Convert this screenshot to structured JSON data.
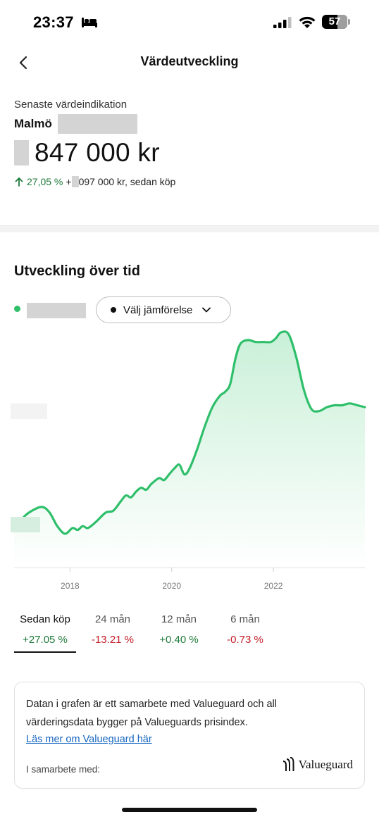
{
  "status_bar": {
    "time": "23:37",
    "battery": "57"
  },
  "nav": {
    "title": "Värdeutveckling"
  },
  "summary": {
    "label": "Senaste värdeindikation",
    "city": "Malmö",
    "value": "847 000 kr",
    "change_pct": "27,05 %",
    "change_amount_prefix": "+",
    "change_amount_suffix": "097 000 kr, sedan köp"
  },
  "development": {
    "title": "Utveckling över tid",
    "compare_label": "Välj jämförelse"
  },
  "chart_data": {
    "type": "area",
    "x_ticks": [
      "2018",
      "2020",
      "2022"
    ],
    "x_range": [
      2016.9,
      2023.8
    ],
    "series": [
      {
        "values": [
          [
            2016.9,
            0.0
          ],
          [
            2017.0,
            0.03
          ],
          [
            2017.1,
            0.07
          ],
          [
            2017.25,
            0.1
          ],
          [
            2017.45,
            0.12
          ],
          [
            2017.6,
            0.09
          ],
          [
            2017.75,
            0.02
          ],
          [
            2017.9,
            -0.02
          ],
          [
            2018.05,
            0.01
          ],
          [
            2018.15,
            0.0
          ],
          [
            2018.25,
            0.02
          ],
          [
            2018.35,
            0.01
          ],
          [
            2018.5,
            0.04
          ],
          [
            2018.7,
            0.09
          ],
          [
            2018.85,
            0.1
          ],
          [
            2019.0,
            0.15
          ],
          [
            2019.1,
            0.18
          ],
          [
            2019.2,
            0.17
          ],
          [
            2019.3,
            0.2
          ],
          [
            2019.4,
            0.22
          ],
          [
            2019.5,
            0.21
          ],
          [
            2019.6,
            0.24
          ],
          [
            2019.75,
            0.27
          ],
          [
            2019.85,
            0.26
          ],
          [
            2019.95,
            0.29
          ],
          [
            2020.05,
            0.32
          ],
          [
            2020.15,
            0.34
          ],
          [
            2020.25,
            0.29
          ],
          [
            2020.35,
            0.32
          ],
          [
            2020.5,
            0.42
          ],
          [
            2020.65,
            0.54
          ],
          [
            2020.8,
            0.64
          ],
          [
            2020.95,
            0.7
          ],
          [
            2021.05,
            0.72
          ],
          [
            2021.15,
            0.76
          ],
          [
            2021.25,
            0.89
          ],
          [
            2021.35,
            0.97
          ],
          [
            2021.5,
            0.99
          ],
          [
            2021.65,
            0.98
          ],
          [
            2021.8,
            0.98
          ],
          [
            2021.95,
            0.98
          ],
          [
            2022.05,
            1.0
          ],
          [
            2022.15,
            1.03
          ],
          [
            2022.3,
            1.02
          ],
          [
            2022.45,
            0.9
          ],
          [
            2022.6,
            0.73
          ],
          [
            2022.75,
            0.63
          ],
          [
            2022.9,
            0.62
          ],
          [
            2023.05,
            0.64
          ],
          [
            2023.2,
            0.65
          ],
          [
            2023.35,
            0.65
          ],
          [
            2023.5,
            0.66
          ],
          [
            2023.65,
            0.65
          ],
          [
            2023.8,
            0.64
          ]
        ]
      }
    ],
    "grid": false,
    "colors": {
      "line": "#2fbf6b",
      "fill_top": "#c9f0d8",
      "fill_bottom": "#ffffff"
    }
  },
  "periods": [
    {
      "label": "Sedan köp",
      "value": "+27.05 %",
      "trend": "pos"
    },
    {
      "label": "24 mån",
      "value": "-13.21 %",
      "trend": "neg"
    },
    {
      "label": "12 mån",
      "value": "+0.40 %",
      "trend": "pos"
    },
    {
      "label": "6 mån",
      "value": "-0.73 %",
      "trend": "neg"
    }
  ],
  "info": {
    "text": "Datan i grafen är ett samarbete med Valueguard och all värderingsdata bygger på Valueguards prisindex.",
    "link": "Läs mer om Valueguard här",
    "partner_label": "I samarbete med:",
    "partner_name": "Valueguard"
  }
}
